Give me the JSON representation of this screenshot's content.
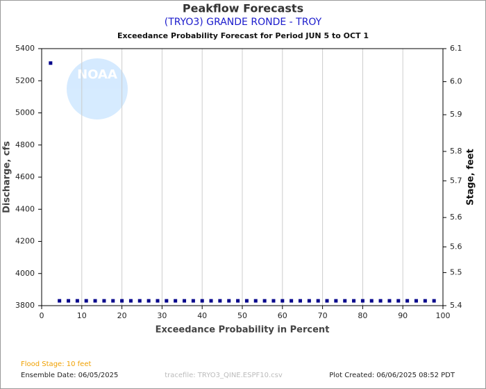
{
  "chart_data": {
    "type": "scatter",
    "title": "Peakflow Forecasts",
    "subtitle": "(TRYO3) GRANDE RONDE - TROY",
    "description": "Exceedance Probability Forecast for Period JUN 5 to OCT 1",
    "x_label": "Exceedance Probability in Percent",
    "y_label": "Discharge, cfs",
    "y2_label": "Stage, feet",
    "logo_text": "NOAA",
    "footer": {
      "flood_stage": "Flood Stage: 10 feet",
      "ensemble_date": "Ensemble Date: 06/05/2025",
      "tracefile": "tracefile: TRYO3_QINE.ESPF10.csv",
      "created": "Plot Created: 06/06/2025 08:52 PDT"
    },
    "xlim": [
      0,
      100
    ],
    "xticks": [
      0,
      10,
      20,
      30,
      40,
      50,
      60,
      70,
      80,
      90,
      100
    ],
    "ylim": [
      3800,
      5400
    ],
    "yticks": [
      3800,
      4000,
      4200,
      4400,
      4600,
      4800,
      5000,
      5200,
      5400
    ],
    "y2lim": [
      5.4,
      6.1
    ],
    "y2ticks": [
      5.4,
      {
        "value": 5.49,
        "label": "5.5"
      },
      {
        "value": 5.56,
        "label": "5.6"
      },
      {
        "value": 5.64,
        "label": "5.6"
      },
      {
        "value": 5.74,
        "label": "5.7"
      },
      {
        "value": 5.82,
        "label": "5.8"
      },
      {
        "value": 5.92,
        "label": "5.9"
      },
      {
        "value": 6.01,
        "label": "6.0"
      },
      6.1
    ],
    "grid": "x",
    "series": [
      {
        "color": "#00008b",
        "x": [
          2.22,
          4.44,
          6.67,
          8.89,
          11.11,
          13.33,
          15.56,
          17.78,
          20,
          22.22,
          24.44,
          26.67,
          28.89,
          31.11,
          33.33,
          35.56,
          37.78,
          40,
          42.22,
          44.44,
          46.67,
          48.89,
          51.11,
          53.33,
          55.56,
          57.78,
          60,
          62.22,
          64.44,
          66.67,
          68.89,
          71.11,
          73.33,
          75.56,
          77.78,
          80,
          82.22,
          84.44,
          86.67,
          88.89,
          91.11,
          93.33,
          95.56,
          97.78
        ],
        "values": [
          5310,
          3830,
          3830,
          3830,
          3830,
          3830,
          3830,
          3830,
          3830,
          3830,
          3830,
          3830,
          3830,
          3830,
          3830,
          3830,
          3830,
          3830,
          3830,
          3830,
          3830,
          3830,
          3830,
          3830,
          3830,
          3830,
          3830,
          3830,
          3830,
          3830,
          3830,
          3830,
          3830,
          3830,
          3830,
          3830,
          3830,
          3830,
          3830,
          3830,
          3830,
          3830,
          3830,
          3830
        ]
      }
    ]
  }
}
